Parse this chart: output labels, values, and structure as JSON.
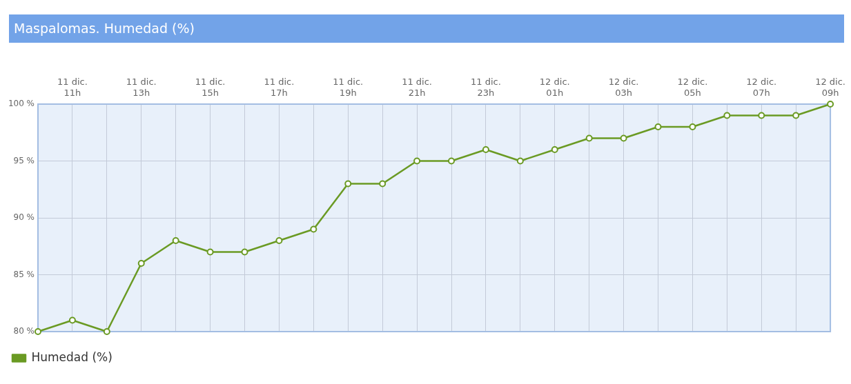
{
  "chart_data": {
    "type": "line",
    "title": "Maspalomas. Humedad (%)",
    "categories": [
      null,
      "11 dic.\n11h",
      null,
      "11 dic.\n13h",
      null,
      "11 dic.\n15h",
      null,
      "11 dic.\n17h",
      null,
      "11 dic.\n19h",
      null,
      "11 dic.\n21h",
      null,
      "11 dic.\n23h",
      null,
      "12 dic.\n01h",
      null,
      "12 dic.\n03h",
      null,
      "12 dic.\n05h",
      null,
      "12 dic.\n07h",
      null,
      "12 dic.\n09h"
    ],
    "series": [
      {
        "name": "Humedad (%)",
        "color": "#6a9a23",
        "values": [
          80,
          81,
          80,
          86,
          88,
          87,
          87,
          88,
          89,
          93,
          93,
          95,
          95,
          96,
          95,
          96,
          97,
          97,
          98,
          98,
          99,
          99,
          99,
          100
        ]
      }
    ],
    "ylim": [
      80,
      100
    ],
    "yticks": [
      {
        "value": 80,
        "label": "80 %"
      },
      {
        "value": 85,
        "label": "85 %"
      },
      {
        "value": 90,
        "label": "90 %"
      },
      {
        "value": 95,
        "label": "95 %"
      },
      {
        "value": 100,
        "label": "100 %"
      }
    ],
    "grid": true,
    "legend": "bottom left",
    "marker": "circle",
    "line_style": "solid"
  }
}
